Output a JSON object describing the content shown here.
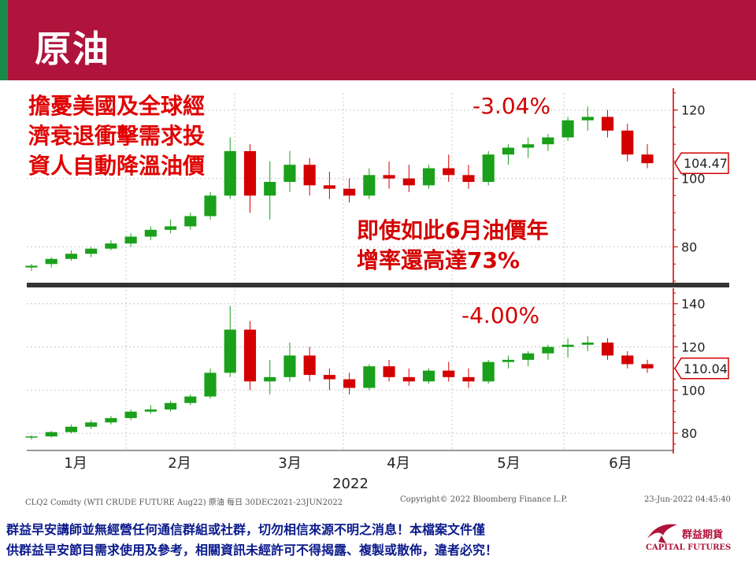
{
  "header": {
    "title": "原油"
  },
  "annotations": {
    "left_line1": "擔憂美國及全球經",
    "left_line2": "濟衰退衝擊需求投",
    "left_line3": "資人自動降溫油價",
    "pct_top": "-3.04%",
    "pct_bottom": "-4.00%",
    "mid_line1": "即使如此6月油價年",
    "mid_line2": "增率還高達73%"
  },
  "footer": {
    "left": "CLQ2 Comdty (WTI CRUDE FUTURE  Aug22) 原油  每日 30DEC2021-23JUN2022",
    "middle": "Copyright© 2022 Bloomberg Finance L.P.",
    "right": "23-Jun-2022 04:45:40"
  },
  "disclaimer": {
    "line1": "群益早安講師並無經營任何通信群組或社群，切勿相信來源不明之消息！本檔案文件僅",
    "line2": "供群益早安節目需求使用及參考，相關資訊未經許可不得揭露、複製或散佈，違者必究！"
  },
  "logo": {
    "name_cn": "群益期貨",
    "name_en": "CAPITAL FUTURES",
    "icon": "bird-logo-icon"
  },
  "colors": {
    "up": "#1aa01a",
    "down": "#d40000",
    "header": "#b0133b",
    "tag": "#d40000"
  },
  "chart_data": [
    {
      "type": "candlestick",
      "name": "CLQ2 Comdty",
      "ylim": [
        70,
        125
      ],
      "yticks": [
        80,
        100,
        120
      ],
      "last_value_label": "104.47",
      "last_value": 104.47,
      "x_labels": [
        "1月",
        "2月",
        "3月",
        "4月",
        "5月",
        "6月"
      ],
      "series": [
        {
          "name": "weekly_ohlc",
          "values": [
            [
              74,
              75,
              73,
              74.5
            ],
            [
              75,
              77,
              74,
              76.5
            ],
            [
              76.5,
              79,
              76,
              78
            ],
            [
              78,
              80,
              77,
              79.5
            ],
            [
              79.5,
              82,
              79,
              81
            ],
            [
              81,
              84,
              80,
              83
            ],
            [
              83,
              86,
              82,
              85
            ],
            [
              85,
              88,
              84,
              86
            ],
            [
              86,
              90,
              85,
              89
            ],
            [
              89,
              96,
              88,
              95
            ],
            [
              95,
              112,
              94,
              108
            ],
            [
              108,
              110,
              90,
              95
            ],
            [
              95,
              105,
              88,
              99
            ],
            [
              99,
              108,
              96,
              104
            ],
            [
              104,
              106,
              95,
              98
            ],
            [
              98,
              102,
              94,
              97
            ],
            [
              97,
              100,
              93,
              95
            ],
            [
              95,
              103,
              94,
              101
            ],
            [
              101,
              105,
              97,
              100
            ],
            [
              100,
              104,
              96,
              98
            ],
            [
              98,
              104,
              97,
              103
            ],
            [
              103,
              107,
              99,
              101
            ],
            [
              101,
              104,
              97,
              99
            ],
            [
              99,
              108,
              98,
              107
            ],
            [
              107,
              110,
              104,
              109
            ],
            [
              109,
              112,
              106,
              110
            ],
            [
              110,
              113,
              108,
              112
            ],
            [
              112,
              118,
              111,
              117
            ],
            [
              117,
              121,
              114,
              118
            ],
            [
              118,
              120,
              112,
              114
            ],
            [
              114,
              116,
              105,
              107
            ],
            [
              107,
              110,
              103,
              104.47
            ]
          ]
        }
      ]
    },
    {
      "type": "candlestick",
      "name": "CL1 generic",
      "ylim": [
        72,
        145
      ],
      "yticks": [
        80,
        100,
        120,
        140
      ],
      "last_value_label": "110.04",
      "last_value": 110.04,
      "x_labels": [
        "1月",
        "2月",
        "3月",
        "4月",
        "5月",
        "6月"
      ],
      "xlabel": "2022",
      "series": [
        {
          "name": "weekly_ohlc",
          "values": [
            [
              78,
              79,
              77,
              78.5
            ],
            [
              78.5,
              81,
              78,
              80.5
            ],
            [
              80.5,
              84,
              80,
              83
            ],
            [
              83,
              86,
              82,
              85
            ],
            [
              85,
              88,
              84,
              87
            ],
            [
              87,
              91,
              86,
              90
            ],
            [
              90,
              93,
              89,
              91
            ],
            [
              91,
              95,
              90,
              94
            ],
            [
              94,
              98,
              93,
              97
            ],
            [
              97,
              110,
              96,
              108
            ],
            [
              108,
              139,
              106,
              128
            ],
            [
              128,
              132,
              100,
              104
            ],
            [
              104,
              114,
              98,
              106
            ],
            [
              106,
              122,
              104,
              116
            ],
            [
              116,
              120,
              104,
              107
            ],
            [
              107,
              110,
              100,
              105
            ],
            [
              105,
              108,
              98,
              101
            ],
            [
              101,
              112,
              100,
              111
            ],
            [
              111,
              114,
              104,
              106
            ],
            [
              106,
              110,
              102,
              104
            ],
            [
              104,
              110,
              103,
              109
            ],
            [
              109,
              113,
              104,
              106
            ],
            [
              106,
              110,
              101,
              104
            ],
            [
              104,
              114,
              103,
              113
            ],
            [
              113,
              116,
              110,
              114
            ],
            [
              114,
              118,
              111,
              117
            ],
            [
              117,
              121,
              114,
              120
            ],
            [
              120,
              124,
              115,
              121
            ],
            [
              121,
              125,
              118,
              122
            ],
            [
              122,
              124,
              114,
              116
            ],
            [
              116,
              118,
              110,
              112
            ],
            [
              112,
              114,
              108,
              110.04
            ]
          ]
        }
      ]
    }
  ]
}
